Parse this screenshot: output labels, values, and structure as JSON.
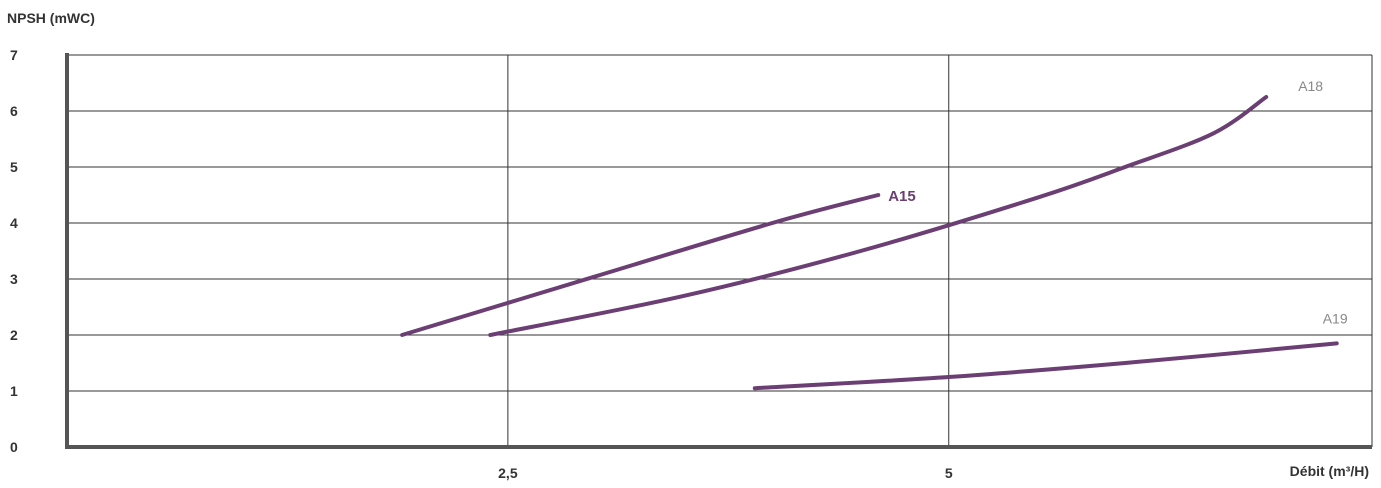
{
  "chart_data": {
    "type": "line",
    "ylabel": "NPSH (mWC)",
    "xlabel": "Débit (m³/H)",
    "xlim": [
      0,
      7.4
    ],
    "ylim": [
      0,
      7
    ],
    "x_ticks": [
      2.5,
      5
    ],
    "x_tick_labels": [
      "2,5",
      "5"
    ],
    "y_ticks": [
      0,
      1,
      2,
      3,
      4,
      5,
      6,
      7
    ],
    "y_tick_labels": [
      "0",
      "1",
      "2",
      "3",
      "4",
      "5",
      "6",
      "7"
    ],
    "grid": true,
    "line_color": "#6b3f73",
    "series": [
      {
        "name": "A15",
        "label_style": "bold-colored",
        "x": [
          1.9,
          3.0,
          4.0,
          4.6
        ],
        "y": [
          2.0,
          3.05,
          4.0,
          4.5
        ]
      },
      {
        "name": "A18",
        "label_style": "light-gray",
        "x": [
          2.4,
          3.5,
          4.5,
          5.5,
          6.0,
          6.5,
          6.8
        ],
        "y": [
          2.0,
          2.7,
          3.5,
          4.45,
          5.0,
          5.6,
          6.25
        ]
      },
      {
        "name": "A19",
        "label_style": "light-gray",
        "x": [
          3.9,
          5.0,
          6.0,
          7.2
        ],
        "y": [
          1.05,
          1.25,
          1.5,
          1.85
        ]
      }
    ]
  }
}
